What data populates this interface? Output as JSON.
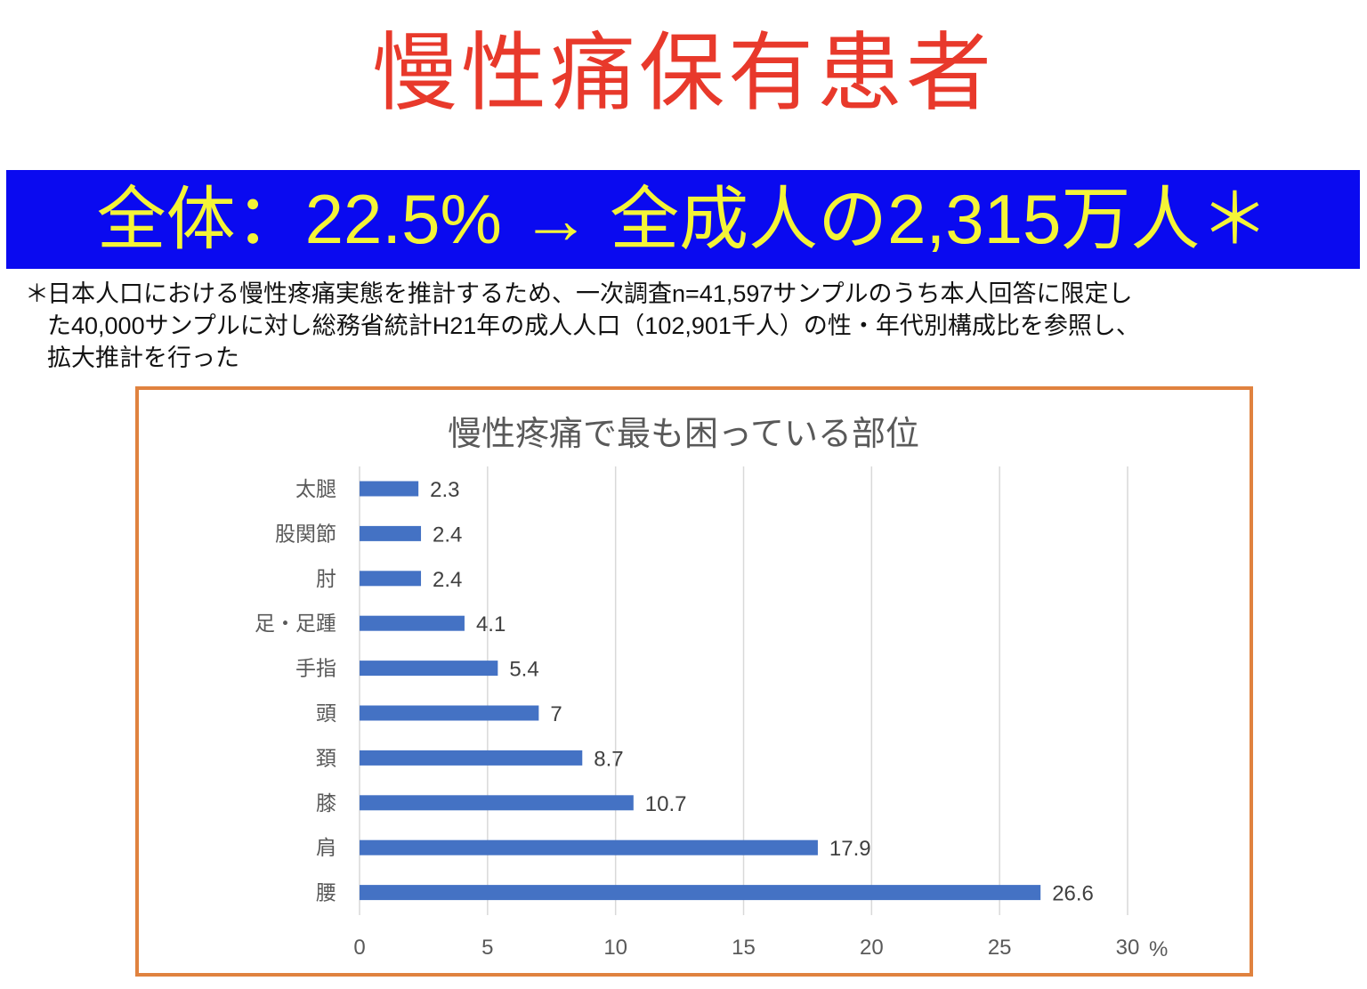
{
  "title": "慢性痛保有患者",
  "banner": "全体：22.5% → 全成人の2,315万人＊",
  "note": {
    "star": "＊",
    "lines": [
      "日本人口における慢性疼痛実態を推計するため、一次調査n=41,597サンプルのうち本人回答に限定し",
      "た40,000サンプルに対し総務省統計H21年の成人人口（102,901千人）の性・年代別構成比を参照し、",
      "拡大推計を行った"
    ]
  },
  "colors": {
    "bar": "#4472c4",
    "title": "#e8392b",
    "banner_bg": "#0a0af0",
    "banner_text": "#f4f437",
    "border": "#e0823f"
  },
  "chart_data": {
    "type": "bar",
    "orientation": "horizontal",
    "title": "慢性疼痛で最も困っている部位",
    "categories": [
      "太腿",
      "股関節",
      "肘",
      "足・足踵",
      "手指",
      "頭",
      "頚",
      "膝",
      "肩",
      "腰"
    ],
    "values": [
      2.3,
      2.4,
      2.4,
      4.1,
      5.4,
      7,
      8.7,
      10.7,
      17.9,
      26.6
    ],
    "data_labels": [
      "2.3",
      "2.4",
      "2.4",
      "4.1",
      "5.4",
      "7",
      "8.7",
      "10.7",
      "17.9",
      "26.6"
    ],
    "xlim": [
      0,
      30
    ],
    "xticks": [
      "0",
      "5",
      "10",
      "15",
      "20",
      "25",
      "30"
    ],
    "xunit": "%",
    "grid": true
  }
}
